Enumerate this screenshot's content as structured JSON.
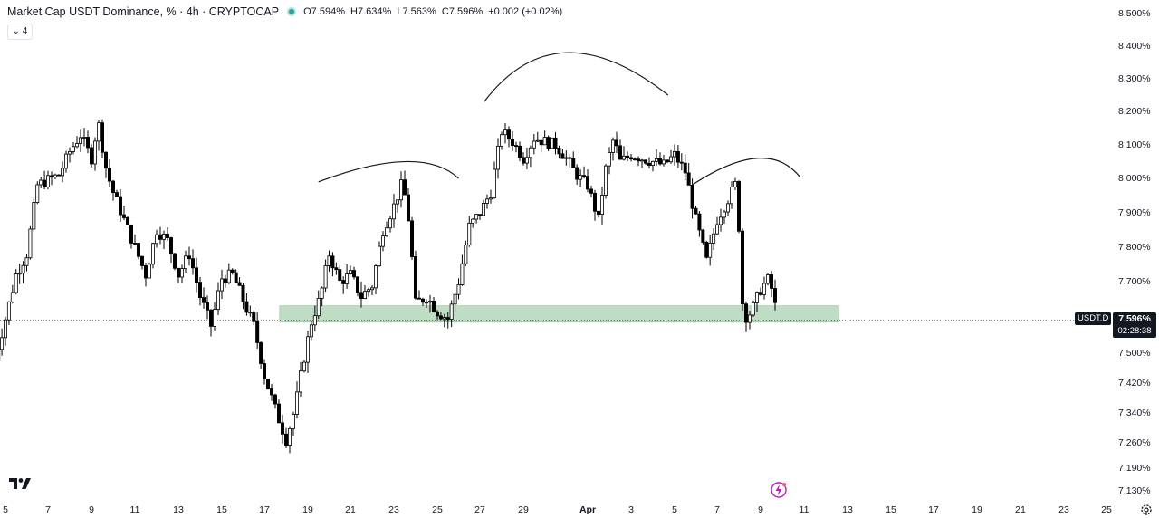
{
  "legend": {
    "title": "Market Cap USDT Dominance, % · 4h · CRYPTOCAP",
    "open": "O7.594%",
    "high": "H7.634%",
    "low": "L7.563%",
    "close": "C7.596%",
    "change": "+0.002 (+0.02%)",
    "indicator_count": "4"
  },
  "price_badge": {
    "symbol": "USDT.D",
    "price": "7.596%",
    "countdown": "02:28:38"
  },
  "colors": {
    "zone": "#a9d1b0",
    "candle_up": "#ffffff",
    "candle_down": "#000000",
    "wick": "#000000",
    "status": "#26a69a"
  },
  "icons": {
    "logo": "tradingview-logo-icon",
    "flash": "flash-icon",
    "settings": "gear-icon"
  },
  "chart_data": {
    "type": "candlestick",
    "interval": "4h",
    "y_axis": {
      "ticks": [
        "8.500%",
        "8.400%",
        "8.300%",
        "8.200%",
        "8.100%",
        "8.000%",
        "7.900%",
        "7.800%",
        "7.700%",
        "7.600%",
        "7.500%",
        "7.420%",
        "7.340%",
        "7.260%",
        "7.190%",
        "7.130%"
      ],
      "tick_values": [
        8.5,
        8.4,
        8.3,
        8.2,
        8.1,
        8.0,
        7.9,
        7.8,
        7.7,
        7.6,
        7.5,
        7.42,
        7.34,
        7.26,
        7.19,
        7.13
      ]
    },
    "x_axis": {
      "ticks": [
        "5",
        "7",
        "9",
        "11",
        "13",
        "15",
        "17",
        "19",
        "21",
        "23",
        "25",
        "27",
        "29",
        "Apr",
        "3",
        "5",
        "7",
        "9",
        "11",
        "13",
        "15",
        "17",
        "19",
        "21",
        "23",
        "25"
      ],
      "tick_days": [
        5,
        7,
        9,
        11,
        13,
        15,
        17,
        19,
        21,
        23,
        25,
        27,
        29,
        32,
        34,
        36,
        38,
        40,
        42,
        44,
        46,
        48,
        50,
        52,
        54,
        56
      ]
    },
    "last_price": 7.596,
    "support_zone": {
      "low": 7.59,
      "high": 7.635,
      "from_day": 17.7,
      "to_day": 43.6
    },
    "arcs": [
      {
        "from": [
          19.5,
          7.99
        ],
        "peak": [
          23.5,
          8.05
        ],
        "to": [
          26.0,
          8.0
        ]
      },
      {
        "from": [
          27.2,
          8.23
        ],
        "peak": [
          31.0,
          8.38
        ],
        "to": [
          35.7,
          8.25
        ]
      },
      {
        "from": [
          36.8,
          7.98
        ],
        "peak": [
          39.8,
          8.06
        ],
        "to": [
          41.8,
          8.005
        ]
      }
    ],
    "anchors": [
      [
        4.5,
        7.48
      ],
      [
        5.0,
        7.6
      ],
      [
        5.5,
        7.72
      ],
      [
        6.0,
        7.78
      ],
      [
        6.5,
        7.98
      ],
      [
        7.5,
        8.01
      ],
      [
        8.0,
        8.08
      ],
      [
        8.5,
        8.13
      ],
      [
        9.0,
        8.06
      ],
      [
        9.3,
        8.17
      ],
      [
        9.7,
        8.02
      ],
      [
        10.0,
        7.96
      ],
      [
        10.5,
        7.88
      ],
      [
        11.0,
        7.8
      ],
      [
        11.5,
        7.72
      ],
      [
        12.0,
        7.85
      ],
      [
        12.5,
        7.82
      ],
      [
        13.0,
        7.72
      ],
      [
        13.5,
        7.78
      ],
      [
        14.0,
        7.66
      ],
      [
        14.5,
        7.58
      ],
      [
        15.0,
        7.71
      ],
      [
        15.5,
        7.72
      ],
      [
        16.0,
        7.65
      ],
      [
        16.5,
        7.58
      ],
      [
        17.0,
        7.44
      ],
      [
        17.5,
        7.35
      ],
      [
        18.0,
        7.27
      ],
      [
        18.4,
        7.35
      ],
      [
        18.8,
        7.48
      ],
      [
        19.2,
        7.6
      ],
      [
        19.6,
        7.66
      ],
      [
        20.0,
        7.78
      ],
      [
        20.5,
        7.7
      ],
      [
        21.0,
        7.72
      ],
      [
        21.5,
        7.66
      ],
      [
        22.0,
        7.69
      ],
      [
        22.5,
        7.85
      ],
      [
        23.0,
        7.92
      ],
      [
        23.4,
        7.99
      ],
      [
        23.7,
        7.87
      ],
      [
        24.0,
        7.64
      ],
      [
        24.5,
        7.66
      ],
      [
        25.0,
        7.62
      ],
      [
        25.5,
        7.6
      ],
      [
        26.0,
        7.7
      ],
      [
        26.5,
        7.86
      ],
      [
        27.0,
        7.9
      ],
      [
        27.5,
        7.96
      ],
      [
        28.0,
        8.14
      ],
      [
        28.5,
        8.11
      ],
      [
        29.0,
        8.06
      ],
      [
        29.5,
        8.12
      ],
      [
        30.0,
        8.11
      ],
      [
        30.5,
        8.1
      ],
      [
        31.0,
        8.06
      ],
      [
        31.5,
        8.01
      ],
      [
        32.0,
        7.98
      ],
      [
        32.5,
        7.88
      ],
      [
        32.8,
        8.02
      ],
      [
        33.2,
        8.12
      ],
      [
        33.5,
        8.05
      ],
      [
        34.0,
        8.07
      ],
      [
        34.5,
        8.06
      ],
      [
        35.0,
        8.05
      ],
      [
        35.5,
        8.04
      ],
      [
        36.0,
        8.07
      ],
      [
        36.5,
        8.02
      ],
      [
        37.0,
        7.88
      ],
      [
        37.5,
        7.76
      ],
      [
        38.0,
        7.88
      ],
      [
        38.5,
        7.94
      ],
      [
        38.9,
        7.99
      ],
      [
        39.2,
        7.6
      ],
      [
        39.6,
        7.62
      ],
      [
        40.0,
        7.68
      ],
      [
        40.4,
        7.71
      ],
      [
        40.8,
        7.596
      ]
    ]
  }
}
